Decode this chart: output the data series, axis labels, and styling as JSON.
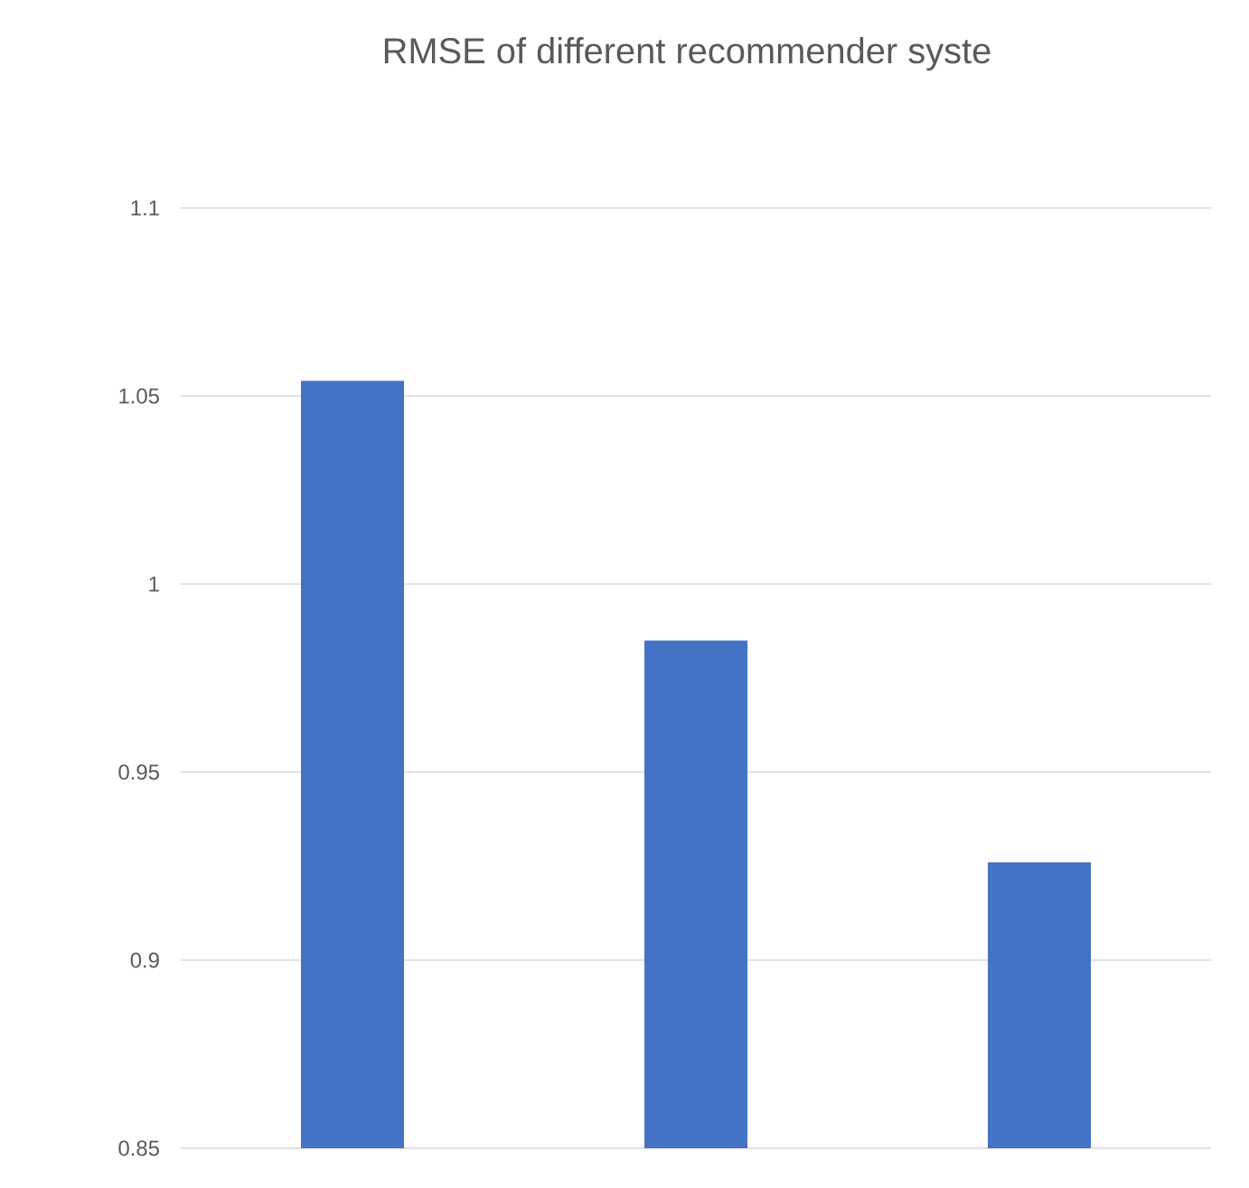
{
  "chart_data": {
    "type": "bar",
    "title": "RMSE of different recommender syste",
    "categories": [
      null,
      null,
      null
    ],
    "values": [
      1.054,
      0.985,
      0.926
    ],
    "color": "#4472c4",
    "ylim": [
      0.85,
      1.1
    ],
    "yticks": [
      0.85,
      0.9,
      0.95,
      1,
      1.05,
      1.1
    ],
    "grid": "y"
  }
}
